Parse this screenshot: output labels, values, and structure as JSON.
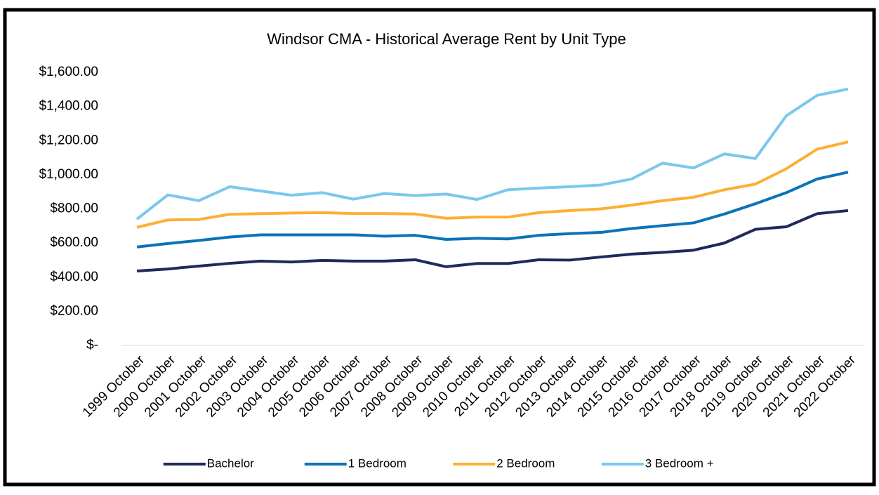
{
  "chart_data": {
    "type": "line",
    "title": "Windsor CMA - Historical Average Rent by Unit Type",
    "categories": [
      "1999 October",
      "2000 October",
      "2001 October",
      "2002 October",
      "2003 October",
      "2004 October",
      "2005 October",
      "2006 October",
      "2007 October",
      "2008 October",
      "2009 October",
      "2010 October",
      "2011 October",
      "2012 October",
      "2013 October",
      "2014 October",
      "2015 October",
      "2016 October",
      "2017 October",
      "2018 October",
      "2019 October",
      "2020 October",
      "2021 October",
      "2022 October"
    ],
    "series": [
      {
        "name": "Bachelor",
        "color": "#1f2a5c",
        "values": [
          436,
          448,
          465,
          481,
          494,
          489,
          498,
          494,
          494,
          502,
          461,
          480,
          480,
          502,
          500,
          518,
          535,
          545,
          558,
          600,
          680,
          695,
          772,
          790
        ]
      },
      {
        "name": "1 Bedroom",
        "color": "#0b73b8",
        "values": [
          577,
          597,
          615,
          635,
          648,
          648,
          648,
          648,
          640,
          645,
          621,
          628,
          624,
          645,
          655,
          662,
          685,
          702,
          718,
          770,
          830,
          895,
          975,
          1015
        ]
      },
      {
        "name": "2 Bedroom",
        "color": "#fbb034",
        "values": [
          692,
          735,
          738,
          768,
          772,
          776,
          778,
          773,
          773,
          770,
          745,
          752,
          752,
          778,
          790,
          800,
          822,
          848,
          868,
          912,
          945,
          1035,
          1150,
          1192
        ]
      },
      {
        "name": "3 Bedroom +",
        "color": "#7ac8ee",
        "values": [
          740,
          882,
          848,
          930,
          905,
          880,
          895,
          857,
          890,
          878,
          887,
          855,
          912,
          922,
          930,
          940,
          975,
          1068,
          1040,
          1122,
          1095,
          1345,
          1465,
          1502
        ]
      }
    ],
    "ylim": [
      0,
      1600
    ],
    "yticks": [
      {
        "value": 0,
        "label": "$-"
      },
      {
        "value": 200,
        "label": "$200.00"
      },
      {
        "value": 400,
        "label": "$400.00"
      },
      {
        "value": 600,
        "label": "$600.00"
      },
      {
        "value": 800,
        "label": "$800.00"
      },
      {
        "value": 1000,
        "label": "$1,000.00"
      },
      {
        "value": 1200,
        "label": "$1,200.00"
      },
      {
        "value": 1400,
        "label": "$1,400.00"
      },
      {
        "value": 1600,
        "label": "$1,600.00"
      }
    ],
    "grid": false,
    "legend": "bottom"
  }
}
